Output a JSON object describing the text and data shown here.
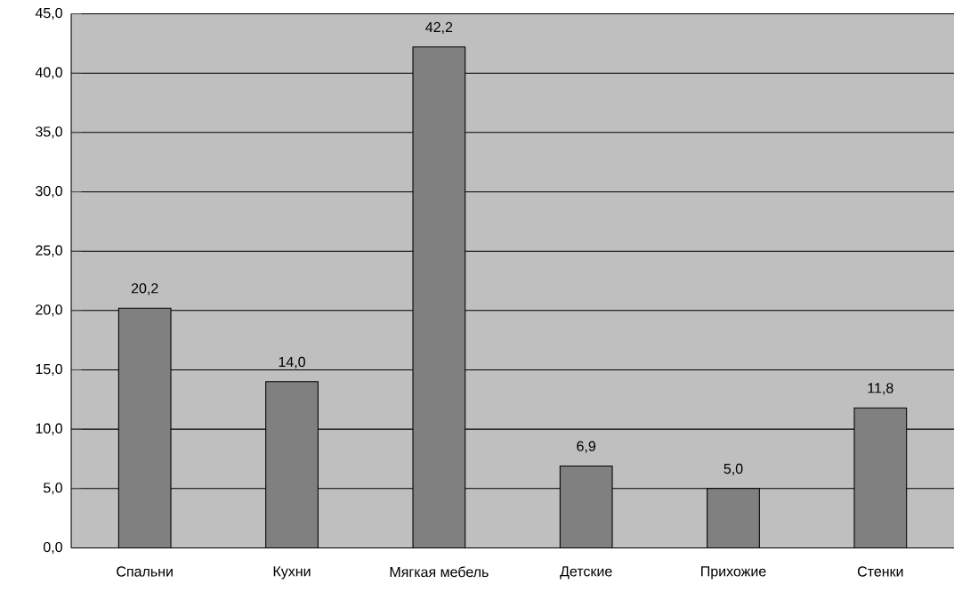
{
  "chart_data": {
    "type": "bar",
    "categories": [
      "Спальни",
      "Кухни",
      "Мягкая мебель",
      "Детские",
      "Прихожие",
      "Стенки"
    ],
    "values": [
      20.2,
      14.0,
      42.2,
      6.9,
      5.0,
      11.8
    ],
    "value_labels": [
      "20,2",
      "14,0",
      "42,2",
      "6,9",
      "5,0",
      "11,8"
    ],
    "color": "#808080",
    "ylim": [
      0,
      45
    ],
    "yticks": [
      {
        "value": 0,
        "label": "0,0"
      },
      {
        "value": 5,
        "label": "5,0"
      },
      {
        "value": 10,
        "label": "10,0"
      },
      {
        "value": 15,
        "label": "15,0"
      },
      {
        "value": 20,
        "label": "20,0"
      },
      {
        "value": 25,
        "label": "25,0"
      },
      {
        "value": 30,
        "label": "30,0"
      },
      {
        "value": 35,
        "label": "35,0"
      },
      {
        "value": 40,
        "label": "40,0"
      },
      {
        "value": 45,
        "label": "45,0"
      }
    ],
    "grid": "y"
  }
}
